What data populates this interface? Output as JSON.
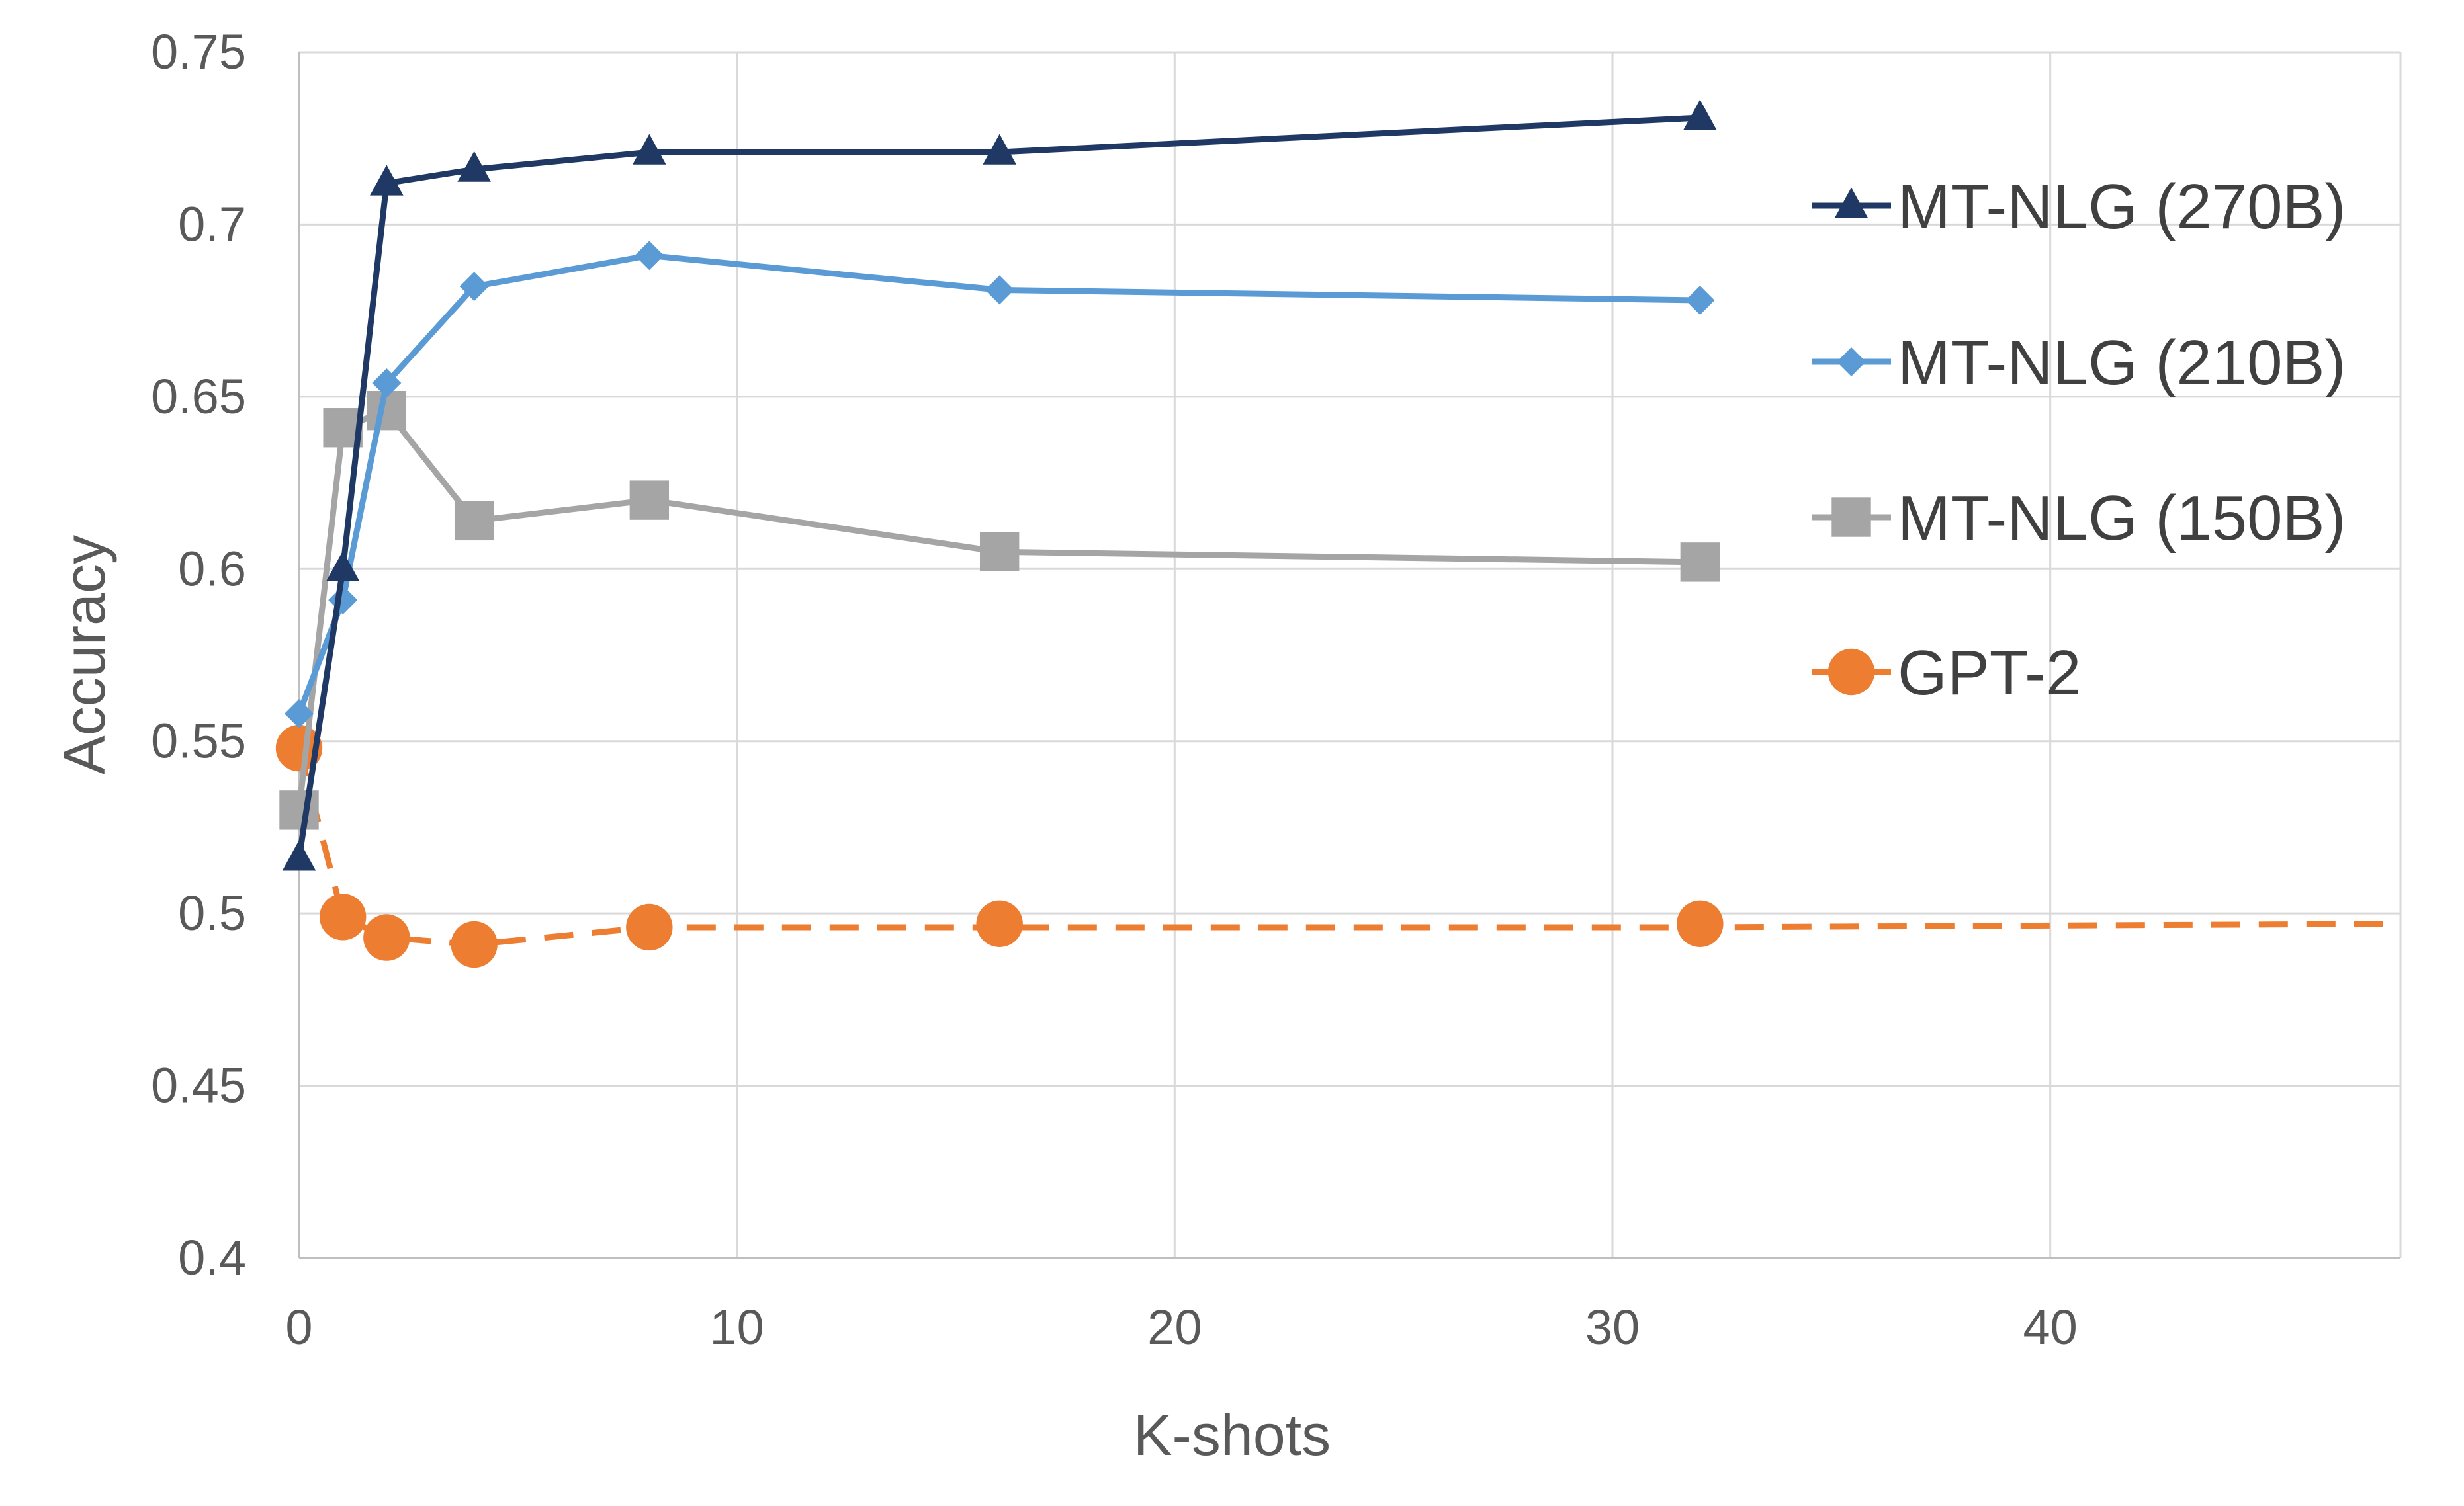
{
  "chart_data": {
    "type": "line",
    "title": "",
    "xlabel": "K-shots",
    "ylabel": "Accuracy",
    "xlim": [
      0,
      48
    ],
    "ylim": [
      0.4,
      0.75
    ],
    "xticks": [
      0,
      10,
      20,
      30,
      40
    ],
    "xtick_labels": [
      "0",
      "10",
      "20",
      "30",
      "40"
    ],
    "yticks": [
      0.4,
      0.45,
      0.5,
      0.55,
      0.6,
      0.65,
      0.7,
      0.75
    ],
    "ytick_labels": [
      "0.4",
      "0.45",
      "0.5",
      "0.55",
      "0.6",
      "0.65",
      "0.7",
      "0.75"
    ],
    "grid": true,
    "legend_position": "right",
    "series": [
      {
        "name": "MT-NLG (270B)",
        "color": "#203864",
        "marker": "triangle",
        "dashed": false,
        "x": [
          0,
          1,
          2,
          4,
          8,
          16,
          32
        ],
        "values": [
          0.516,
          0.6,
          0.712,
          0.716,
          0.721,
          0.721,
          0.731
        ]
      },
      {
        "name": "MT-NLG (210B)",
        "color": "#5b9bd5",
        "marker": "diamond",
        "dashed": false,
        "x": [
          0,
          1,
          2,
          4,
          8,
          16,
          32
        ],
        "values": [
          0.558,
          0.591,
          0.654,
          0.682,
          0.691,
          0.681,
          0.678
        ]
      },
      {
        "name": "MT-NLG (150B)",
        "color": "#a5a5a5",
        "marker": "square",
        "dashed": false,
        "x": [
          0,
          1,
          2,
          4,
          8,
          16,
          32
        ],
        "values": [
          0.53,
          0.641,
          0.646,
          0.614,
          0.62,
          0.605,
          0.602
        ]
      },
      {
        "name": "GPT-2",
        "color": "#ed7d31",
        "marker": "circle",
        "dashed": true,
        "x": [
          0,
          1,
          2,
          4,
          8,
          16,
          32
        ],
        "values": [
          0.548,
          0.499,
          0.493,
          0.491,
          0.496,
          0.497,
          0.497
        ],
        "trend_x": [
          0,
          1,
          2,
          4,
          8,
          16,
          32,
          48
        ],
        "trend_values": [
          0.548,
          0.499,
          0.493,
          0.491,
          0.496,
          0.496,
          0.496,
          0.497
        ]
      }
    ]
  }
}
